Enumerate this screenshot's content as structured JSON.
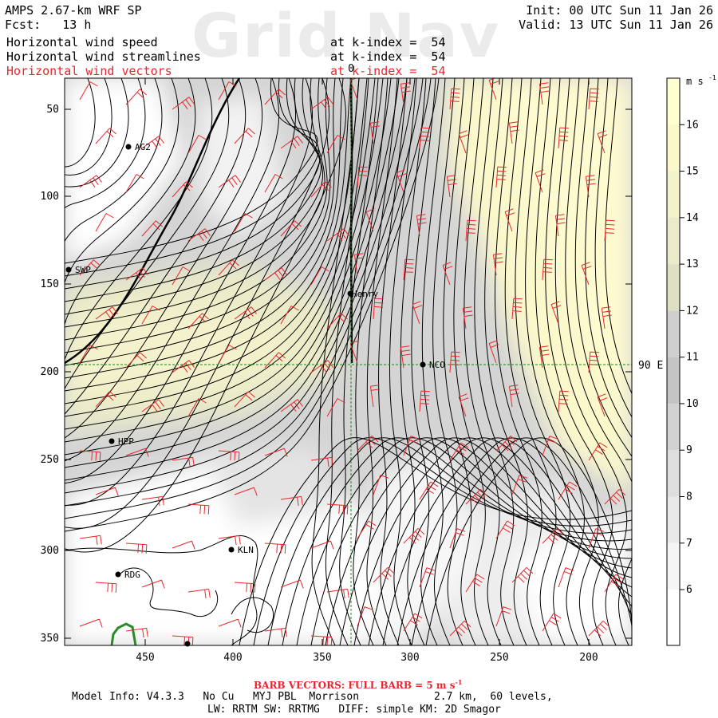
{
  "header": {
    "model": "AMPS 2.67-km WRF SP",
    "init": "Init: 00 UTC Sun 11 Jan 26",
    "fcst": "Fcst:   13 h",
    "valid": "Valid: 13 UTC Sun 11 Jan 26",
    "fields": [
      {
        "name": "Horizontal wind speed",
        "level": "at k-index =  54",
        "color": "#000000"
      },
      {
        "name": "Horizontal wind streamlines",
        "level": "at k-index =  54",
        "color": "#000000"
      },
      {
        "name": "Horizontal wind vectors",
        "level": "at k-index =  54",
        "color": "#e8262b"
      }
    ]
  },
  "watermark": "Grid Nav",
  "map": {
    "x_ticks": [
      "450",
      "400",
      "350",
      "300",
      "250",
      "200"
    ],
    "y_ticks": [
      "50",
      "100",
      "150",
      "200",
      "250",
      "300",
      "350"
    ],
    "meridian_label": "0",
    "parallel_label": "90 E",
    "stations": [
      {
        "id": "AG2"
      },
      {
        "id": "SWP"
      },
      {
        "id": "Henry"
      },
      {
        "id": "NCO"
      },
      {
        "id": "HPP"
      },
      {
        "id": "KLN"
      },
      {
        "id": "RDG"
      }
    ]
  },
  "colorbar": {
    "unit": "m s",
    "unit_exp": "-1",
    "levels": [
      "16",
      "15",
      "14",
      "13",
      "12",
      "11",
      "10",
      "9",
      "8",
      "7",
      "6"
    ],
    "colors": [
      "#ffffd0",
      "#fbf8cc",
      "#f3f2cc",
      "#ebebc9",
      "#dfdfc4",
      "#cfcfcf",
      "#c4c4c4",
      "#d2d2d2",
      "#dedede",
      "#e9e9e9",
      "#f5f5f5",
      "#ffffff"
    ]
  },
  "footer": {
    "barb_label": "BARB VECTORS: FULL BARB = 5 m s",
    "barb_exp": "-1",
    "model_info": "Model Info: V4.3.3   No Cu   MYJ PBL  Morrison            2.7 km,  60 levels,",
    "physics": "LW: RRTM SW: RRTMG   DIFF: simple KM: 2D Smagor"
  }
}
